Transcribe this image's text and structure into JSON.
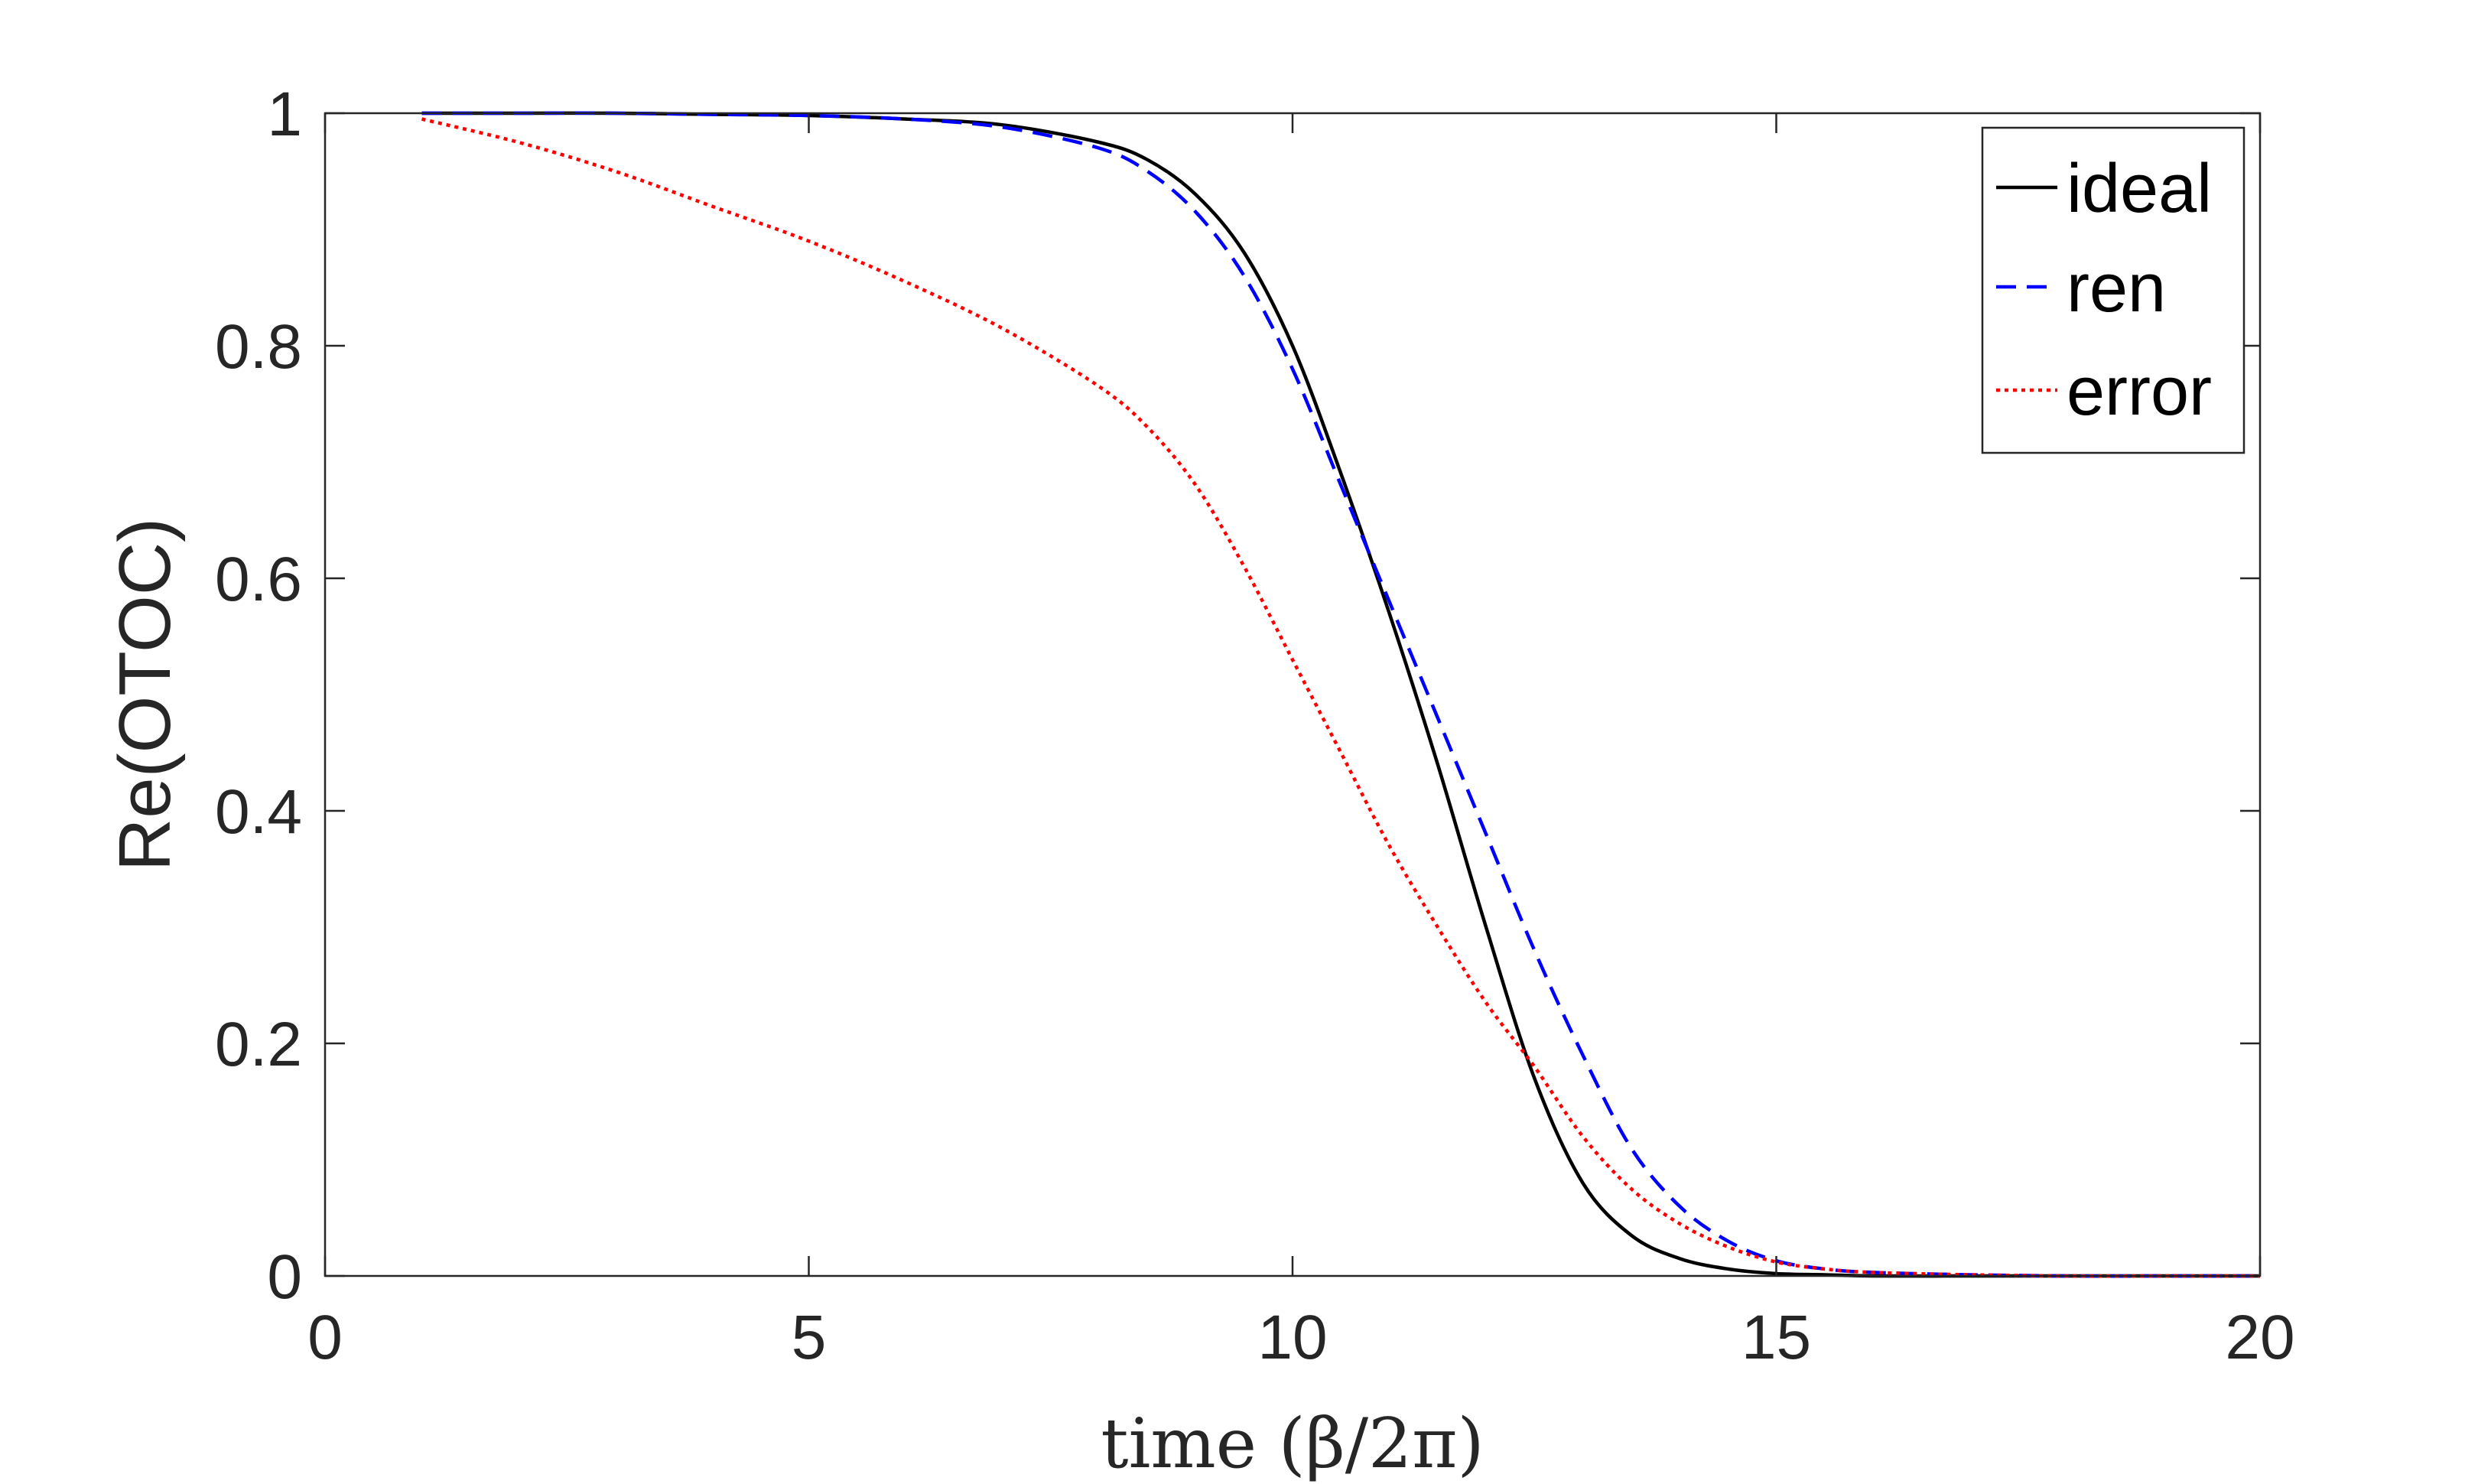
{
  "chart_data": {
    "type": "line",
    "title": "",
    "xlabel": "time (β/2π)",
    "ylabel": "Re(OTOC)",
    "xlim": [
      0,
      20
    ],
    "ylim": [
      0,
      1
    ],
    "xticks": [
      0,
      5,
      10,
      15,
      20
    ],
    "yticks": [
      0,
      0.2,
      0.4,
      0.6,
      0.8,
      1
    ],
    "xtick_labels": [
      "0",
      "5",
      "10",
      "15",
      "20"
    ],
    "ytick_labels": [
      "0",
      "0.2",
      "0.4",
      "0.6",
      "0.8",
      "1"
    ],
    "grid": false,
    "legend_position": "top-right",
    "series": [
      {
        "name": "ideal",
        "color": "#000000",
        "style": "solid",
        "x": [
          1,
          2,
          3,
          4,
          5,
          6,
          7,
          8,
          8.5,
          9,
          9.5,
          10,
          10.5,
          11,
          11.5,
          12,
          12.5,
          13,
          13.5,
          14,
          14.5,
          15,
          15.5,
          16,
          17,
          18,
          19,
          20
        ],
        "y": [
          1.0,
          1.0,
          1.0,
          0.999,
          0.998,
          0.995,
          0.99,
          0.975,
          0.96,
          0.93,
          0.88,
          0.8,
          0.69,
          0.57,
          0.44,
          0.3,
          0.17,
          0.08,
          0.035,
          0.015,
          0.006,
          0.002,
          0.001,
          0.0,
          0.0,
          0.0,
          0.0,
          0.0
        ]
      },
      {
        "name": "ren",
        "color": "#0000ff",
        "style": "dashed",
        "x": [
          1,
          2,
          3,
          4,
          5,
          6,
          7,
          8,
          8.5,
          9,
          9.5,
          10,
          10.5,
          11,
          11.5,
          12,
          12.5,
          13,
          13.5,
          14,
          14.5,
          15,
          15.5,
          16,
          17,
          18,
          19,
          20
        ],
        "y": [
          1.0,
          1.0,
          1.0,
          0.999,
          0.998,
          0.995,
          0.988,
          0.97,
          0.95,
          0.915,
          0.86,
          0.78,
          0.68,
          0.58,
          0.48,
          0.38,
          0.28,
          0.19,
          0.11,
          0.06,
          0.03,
          0.013,
          0.006,
          0.003,
          0.001,
          0.0,
          0.0,
          0.0
        ]
      },
      {
        "name": "error",
        "color": "#ff0000",
        "style": "dotted",
        "x": [
          1,
          2,
          3,
          4,
          5,
          6,
          7,
          8,
          8.5,
          9,
          9.5,
          10,
          10.5,
          11,
          11.5,
          12,
          12.5,
          13,
          13.5,
          14,
          14.5,
          15,
          15.5,
          16,
          17,
          18,
          19,
          20
        ],
        "y": [
          0.995,
          0.975,
          0.95,
          0.92,
          0.89,
          0.855,
          0.815,
          0.765,
          0.73,
          0.68,
          0.61,
          0.53,
          0.45,
          0.37,
          0.3,
          0.235,
          0.18,
          0.12,
          0.075,
          0.045,
          0.025,
          0.012,
          0.006,
          0.003,
          0.001,
          0.0,
          0.0,
          0.0
        ]
      }
    ]
  }
}
